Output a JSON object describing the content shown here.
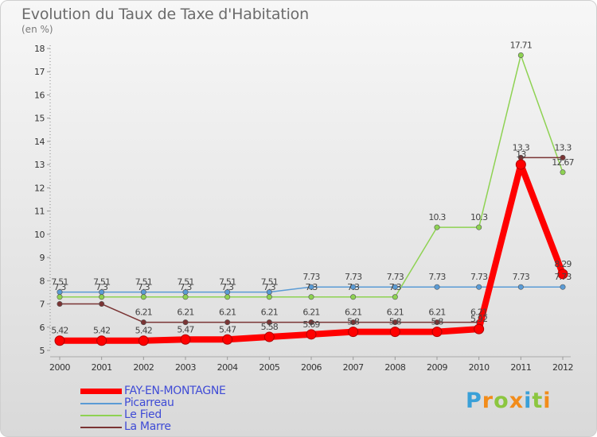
{
  "title": "Evolution du Taux de Taxe d'Habitation",
  "subtitle": "(en %)",
  "logo_text": "Proxiti",
  "colors": {
    "FAY-EN-MONTAGNE": "#ff0000",
    "Picarreau": "#5a9bd5",
    "Le Fied": "#8ed252",
    "La Marre": "#7a3434",
    "legend_text": "#3f4bd6"
  },
  "chart_data": {
    "type": "line",
    "title": "Evolution du Taux de Taxe d'Habitation",
    "ylabel": "(en %)",
    "xlabel": "",
    "x": [
      "2000",
      "2001",
      "2002",
      "2003",
      "2004",
      "2005",
      "2006",
      "2007",
      "2008",
      "2009",
      "2010",
      "2011",
      "2012"
    ],
    "ylim": [
      5,
      18
    ],
    "yticks": [
      5,
      6,
      7,
      8,
      9,
      10,
      11,
      12,
      13,
      14,
      15,
      16,
      17,
      18
    ],
    "grid": false,
    "legend": "bottom-left",
    "series": [
      {
        "name": "FAY-EN-MONTAGNE",
        "color": "#ff0000",
        "values": [
          5.42,
          5.42,
          5.42,
          5.47,
          5.47,
          5.58,
          5.69,
          5.8,
          5.8,
          5.8,
          5.92,
          13,
          8.29
        ],
        "labels": [
          "5.42",
          "5.42",
          "5.42",
          "5.47",
          "5.47",
          "5.58",
          "5.69",
          "5.8",
          "5.8",
          "5.8",
          "5.92",
          "13",
          "8.29"
        ]
      },
      {
        "name": "Picarreau",
        "color": "#5a9bd5",
        "values": [
          7.51,
          7.51,
          7.51,
          7.51,
          7.51,
          7.51,
          7.73,
          7.73,
          7.73,
          7.73,
          7.73,
          7.73,
          7.73
        ],
        "labels": [
          "7.51",
          "7.51",
          "7.51",
          "7.51",
          "7.51",
          "7.51",
          "7.73",
          "7.73",
          "7.73",
          "7.73",
          "7.73",
          "7.73",
          "7.73"
        ]
      },
      {
        "name": "Le Fied",
        "color": "#8ed252",
        "values": [
          7.3,
          7.3,
          7.3,
          7.3,
          7.3,
          7.3,
          7.3,
          7.3,
          7.3,
          10.3,
          10.3,
          17.71,
          12.67
        ],
        "labels": [
          "7.3",
          "7.3",
          "7.3",
          "7.3",
          "7.3",
          "7.3",
          "7.3",
          "7.3",
          "7.3",
          "10.3",
          "10.3",
          "17.71",
          "12.67"
        ]
      },
      {
        "name": "La Marre",
        "color": "#7a3434",
        "values": [
          7,
          7,
          6.21,
          6.21,
          6.21,
          6.21,
          6.21,
          6.21,
          6.21,
          6.21,
          6.21,
          13.3,
          13.3
        ],
        "labels": [
          "",
          "",
          "6.21",
          "6.21",
          "6.21",
          "6.21",
          "6.21",
          "6.21",
          "6.21",
          "6.21",
          "6.21",
          "13.3",
          "13.3"
        ]
      }
    ]
  }
}
